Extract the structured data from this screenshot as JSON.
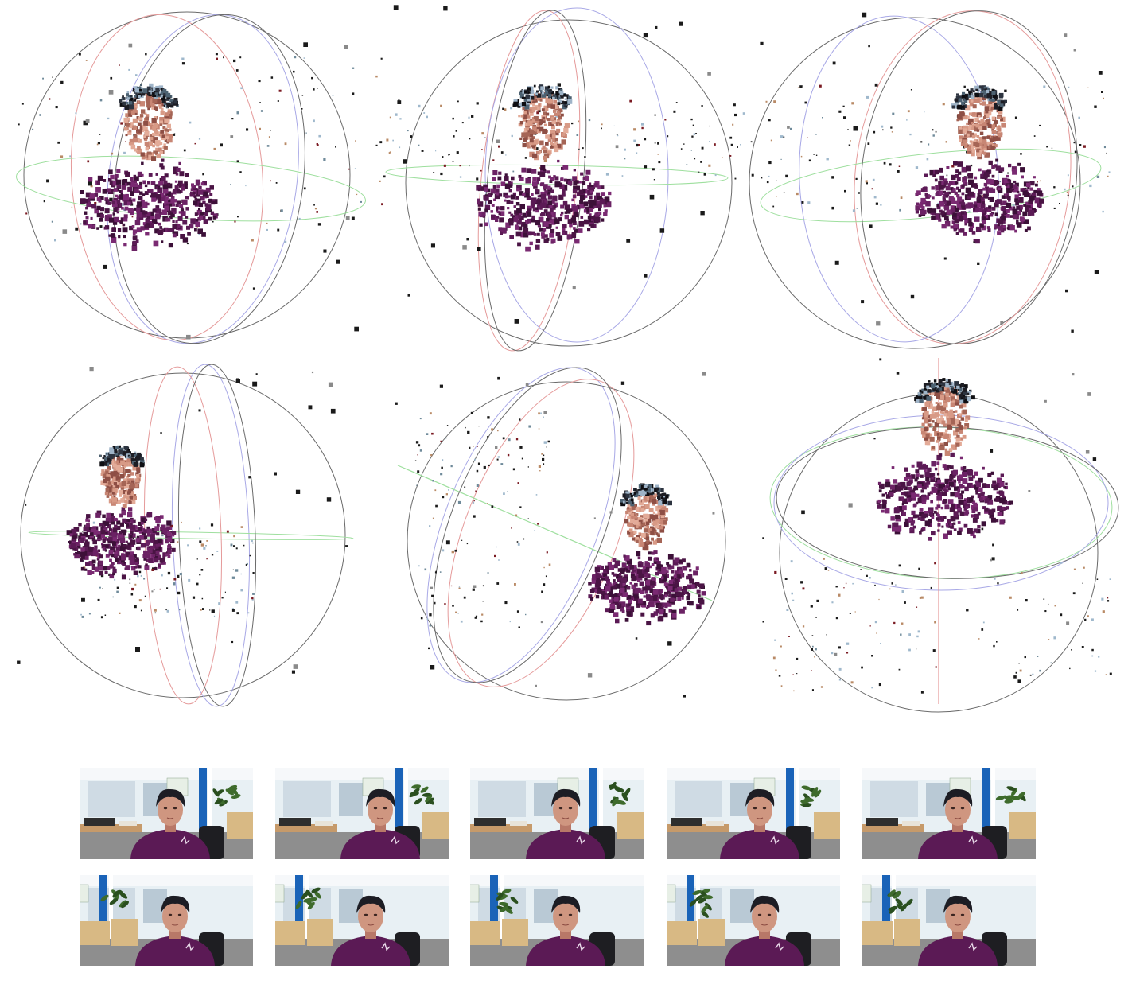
{
  "figure": {
    "panels": [
      {
        "name": "pointcloud-view-1",
        "head_yaw_deg": -20,
        "head_tilt_deg": -8
      },
      {
        "name": "pointcloud-view-2",
        "head_yaw_deg": 0,
        "head_tilt_deg": 0
      },
      {
        "name": "pointcloud-view-3",
        "head_yaw_deg": 15,
        "head_tilt_deg": -6
      },
      {
        "name": "pointcloud-view-4",
        "head_yaw_deg": -35,
        "head_tilt_deg": 0
      },
      {
        "name": "pointcloud-view-5",
        "head_yaw_deg": 40,
        "head_tilt_deg": 20
      },
      {
        "name": "pointcloud-view-6",
        "head_yaw_deg": 0,
        "head_tilt_deg": -40
      }
    ],
    "frames_row1": [
      {
        "name": "frame-1",
        "head_offset": -0.1
      },
      {
        "name": "frame-2",
        "head_offset": 0.2
      },
      {
        "name": "frame-3",
        "head_offset": 0.0
      },
      {
        "name": "frame-4",
        "head_offset": -0.05
      },
      {
        "name": "frame-5",
        "head_offset": 0.0
      }
    ],
    "frames_row2": [
      {
        "name": "frame-6",
        "head_offset": 0.0
      },
      {
        "name": "frame-7",
        "head_offset": 0.0
      },
      {
        "name": "frame-8",
        "head_offset": 0.0
      },
      {
        "name": "frame-9",
        "head_offset": 0.05
      },
      {
        "name": "frame-10",
        "head_offset": 0.0
      }
    ],
    "colors": {
      "shirt": "#5b1a55",
      "skin": "#c88674",
      "hair": "#1d1d24",
      "sphere_ring": "#6a6a6a",
      "ring_red": "#e59a9a",
      "ring_blue": "#a8a8e6",
      "ring_green": "#9edf9e",
      "office_wall": "#e8f0f4",
      "office_blue": "#1a63b8",
      "cabinet": "#d8b984",
      "desk": "#c69a6a"
    }
  }
}
